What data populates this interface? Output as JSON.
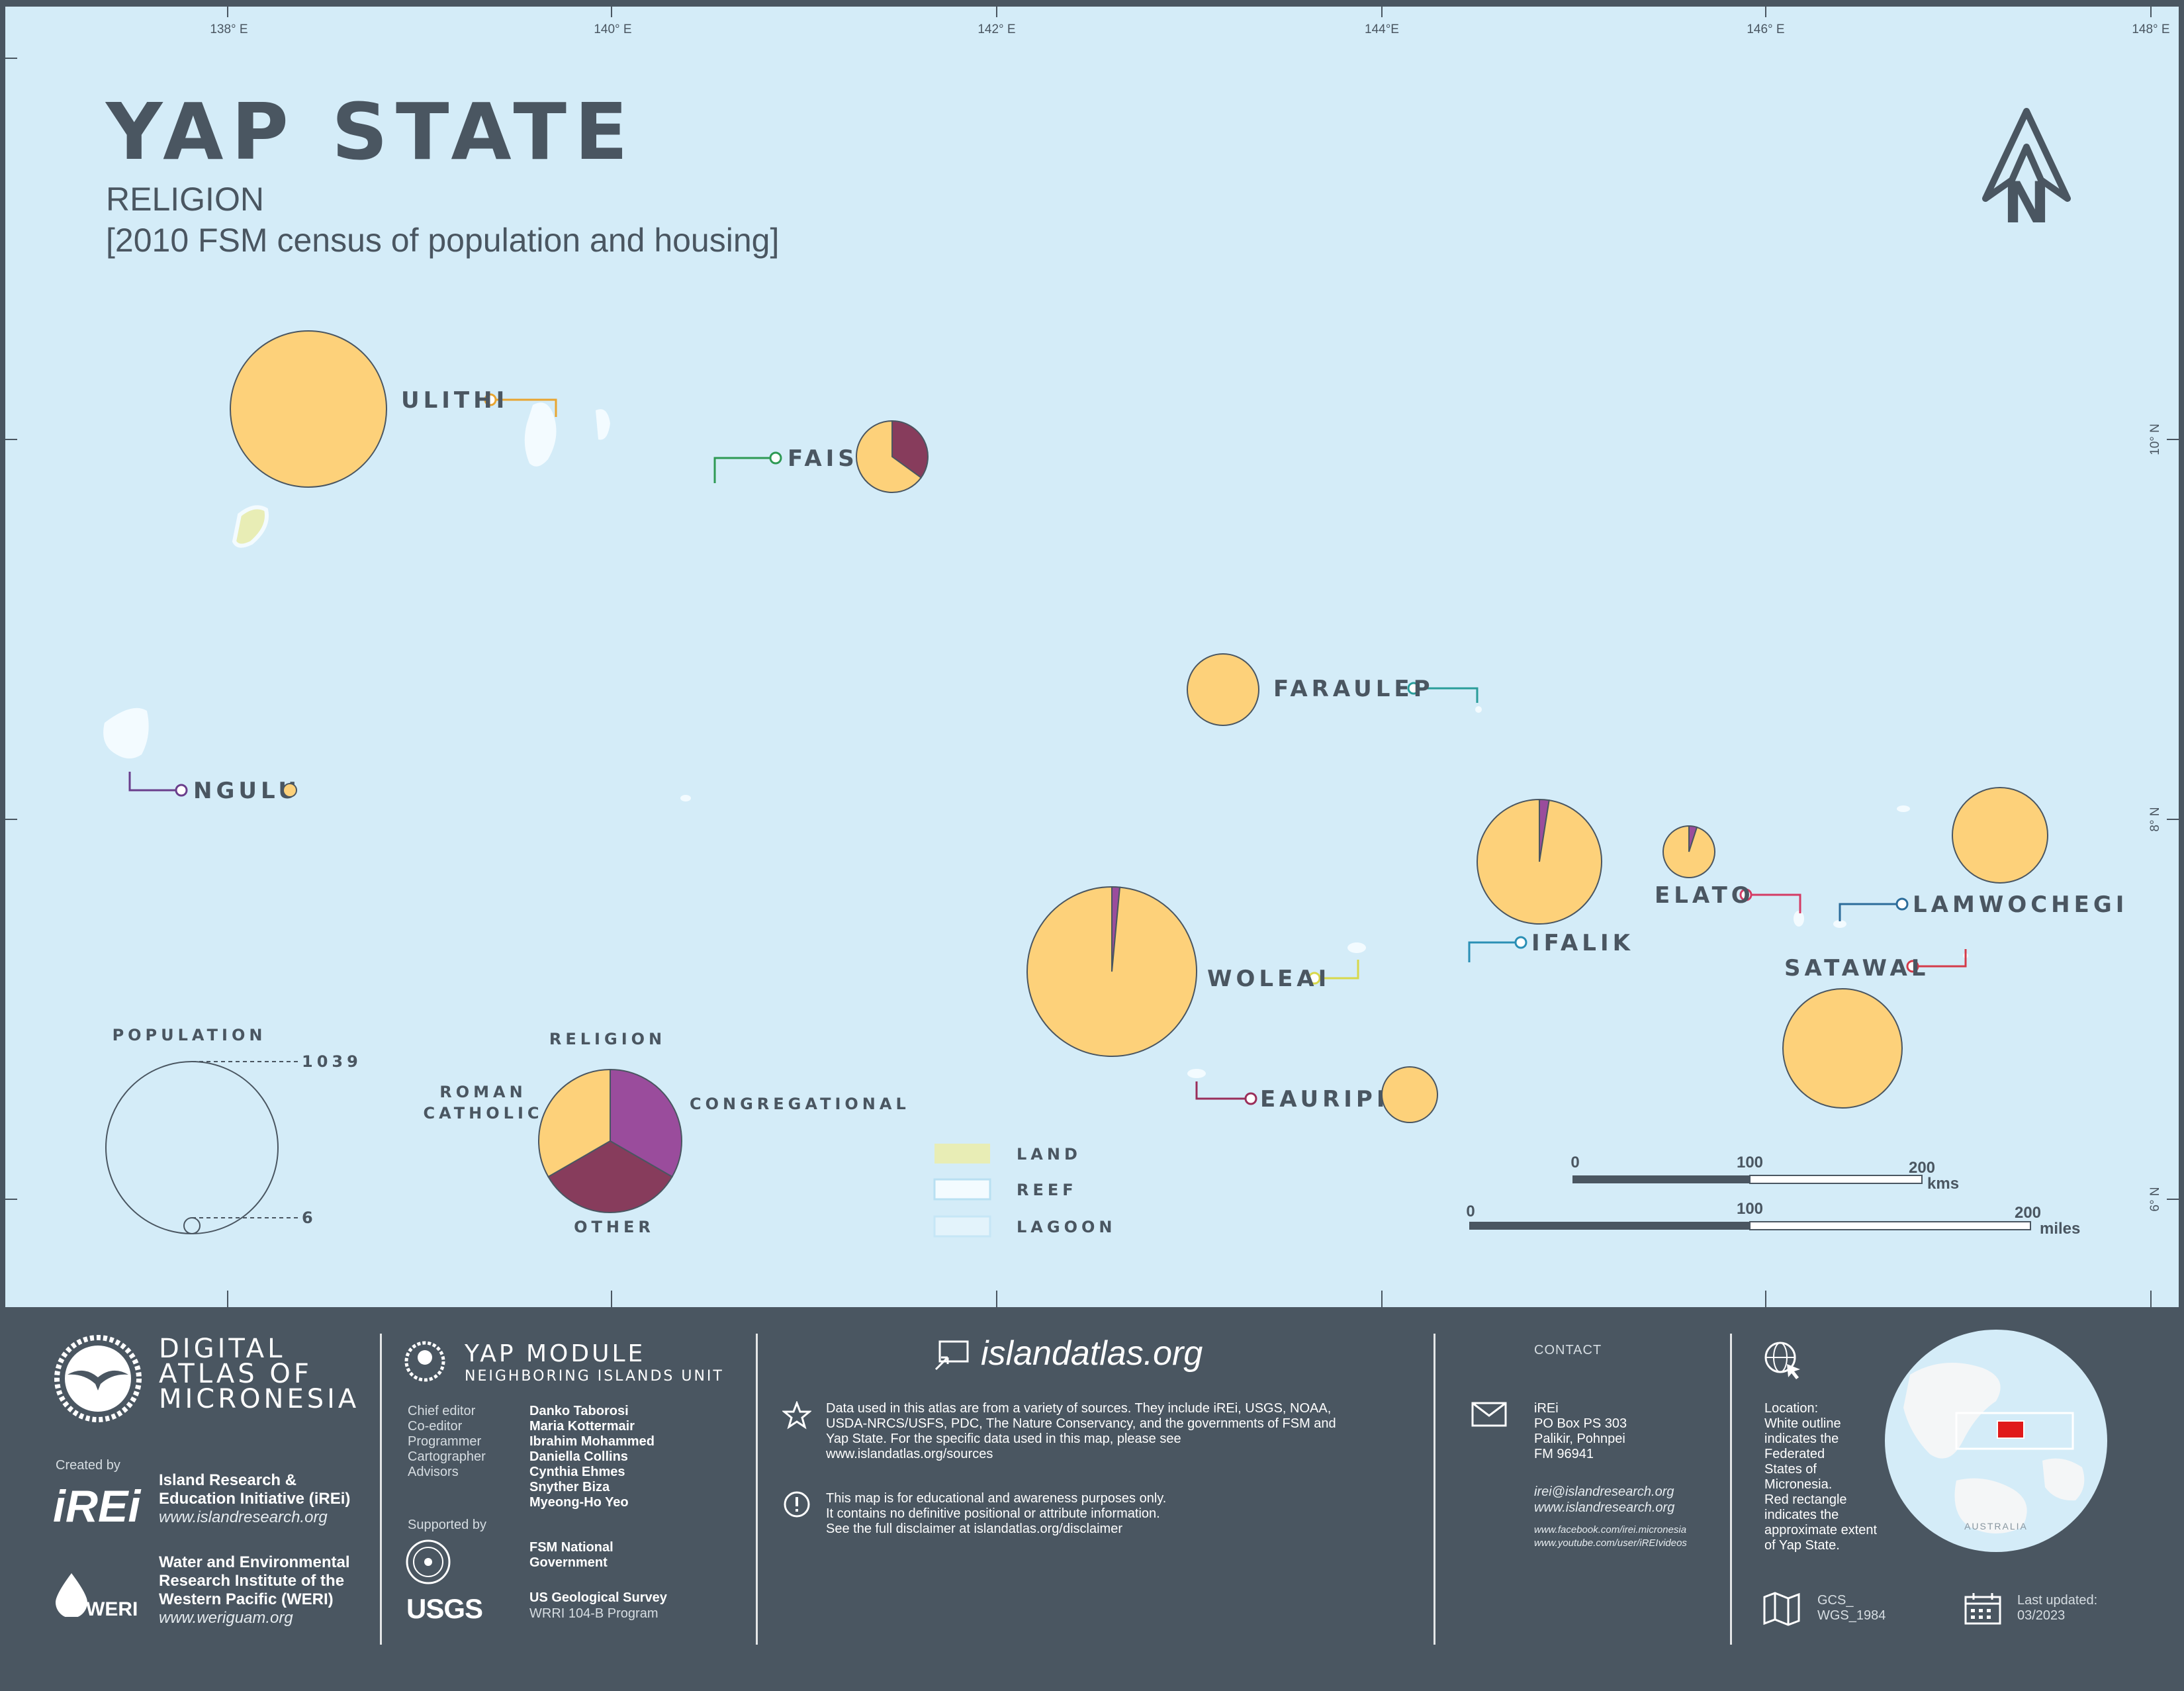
{
  "header": {
    "title": "YAP STATE",
    "subtitle": "RELIGION",
    "subtitle2": "[2010 FSM census of population and housing]"
  },
  "map": {
    "longitude_labels": [
      "138° E",
      "140° E",
      "142° E",
      "144°E",
      "146° E",
      "148° E"
    ],
    "latitude_labels": [
      "10° N",
      "8° N",
      "6° N"
    ],
    "north_arrow": "N",
    "icon": "north-arrow-icon",
    "islands": [
      {
        "name": "ULITHI",
        "religion": {
          "roman_catholic": 1.0,
          "congregational": 0.0,
          "other": 0.0
        }
      },
      {
        "name": "FAIS",
        "religion": {
          "roman_catholic": 0.65,
          "congregational": 0.0,
          "other": 0.35
        }
      },
      {
        "name": "FARAULEP",
        "religion": {
          "roman_catholic": 1.0,
          "congregational": 0.0,
          "other": 0.0
        }
      },
      {
        "name": "NGULU",
        "religion": {
          "roman_catholic": 1.0,
          "congregational": 0.0,
          "other": 0.0
        }
      },
      {
        "name": "IFALIK",
        "religion": {
          "roman_catholic": 0.975,
          "congregational": 0.025,
          "other": 0.0
        }
      },
      {
        "name": "ELATO",
        "religion": {
          "roman_catholic": 0.95,
          "congregational": 0.05,
          "other": 0.0
        }
      },
      {
        "name": "LAMWOCHEGI",
        "religion": {
          "roman_catholic": 1.0,
          "congregational": 0.0,
          "other": 0.0
        }
      },
      {
        "name": "SATAWAL",
        "religion": {
          "roman_catholic": 1.0,
          "congregational": 0.0,
          "other": 0.0
        }
      },
      {
        "name": "WOLEAI",
        "religion": {
          "roman_catholic": 0.985,
          "congregational": 0.015,
          "other": 0.0
        }
      },
      {
        "name": "EAURIPIK",
        "religion": {
          "roman_catholic": 1.0,
          "congregational": 0.0,
          "other": 0.0
        }
      }
    ],
    "colors": {
      "roman_catholic": "#fdd17a",
      "congregational": "#9a4c9c",
      "other": "#873c5c",
      "ocean": "#d4ecf8",
      "land": "#e8edb5",
      "reef": "#f3fbff",
      "text": "#4a5661"
    }
  },
  "legend": {
    "population_title": "POPULATION",
    "population_max": "1039",
    "population_min": "6",
    "religion_title": "RELIGION",
    "roman_catholic": "ROMAN",
    "roman_catholic2": "CATHOLIC",
    "congregational": "CONGREGATIONAL",
    "other": "OTHER",
    "land": "LAND",
    "reef": "REEF",
    "lagoon": "LAGOON"
  },
  "scale": {
    "km_ticks": [
      "0",
      "100",
      "200"
    ],
    "km_unit": "kms",
    "mi_ticks": [
      "0",
      "100",
      "200"
    ],
    "mi_unit": "miles"
  },
  "footer": {
    "atlas_line1": "DIGITAL",
    "atlas_line2": "ATLAS OF",
    "atlas_line3": "MICRONESIA",
    "created_by": "Created by",
    "irei_logo": "iREi",
    "irei_name1": "Island Research &",
    "irei_name2": "Education Initiative (iREi)",
    "irei_url": "www.islandresearch.org",
    "weri_logo": "WERI",
    "weri_name1": "Water and Environmental",
    "weri_name2": "Research Institute of the",
    "weri_name3": "Western Pacific (WERI)",
    "weri_url": "www.weriguam.org",
    "module_title": "YAP MODULE",
    "module_sub": "NEIGHBORING ISLANDS UNIT",
    "roles": [
      "Chief editor",
      "Co-editor",
      "Programmer",
      "Cartographer",
      "Advisors"
    ],
    "people": [
      "Danko Taborosi",
      "Maria Kottermair",
      "Ibrahim Mohammed",
      "Daniella Collins",
      "Cynthia Ehmes",
      "Snyther Biza",
      "Myeong-Ho Yeo"
    ],
    "supported_by": "Supported by",
    "fsm_gov1": "FSM National",
    "fsm_gov2": "Government",
    "usgs_logo": "USGS",
    "usgs_name": "US Geological Survey",
    "usgs_program": "WRRI 104-B Program",
    "site": "islandatlas.org",
    "data_note1": "Data used in this atlas are from a variety of sources. They include iREi, USGS, NOAA,",
    "data_note2": "USDA-NRCS/USFS, PDC, The Nature Conservancy, and the governments of FSM and",
    "data_note3": "Yap State. For the specific data used in this map, please see",
    "data_note4": "www.islandatlas.org/sources",
    "disclaimer1": "This map is for educational and awareness purposes only.",
    "disclaimer2": "It contains no definitive positional or attribute information.",
    "disclaimer3": "See the full disclaimer at",
    "disclaimer_link": "islandatlas.org/disclaimer",
    "contact_title": "CONTACT",
    "contact_lines": [
      "iREi",
      "PO Box PS 303",
      "Palikir, Pohnpei",
      "FM 96941"
    ],
    "contact_email": "irei@islandresearch.org",
    "contact_web": "www.islandresearch.org",
    "contact_fb": "www.facebook.com/irei.micronesia",
    "contact_yt": "www.youtube.com/user/iREIvideos",
    "location_lines": [
      "Location:",
      "White outline",
      "indicates the",
      "Federated",
      "States of",
      "Micronesia.",
      "Red rectangle",
      "indicates the",
      "approximate extent",
      "of Yap State."
    ],
    "globe_label": "AUSTRALIA",
    "crs1": "GCS_",
    "crs2": "WGS_1984",
    "updated1": "Last updated:",
    "updated2": "03/2023"
  }
}
